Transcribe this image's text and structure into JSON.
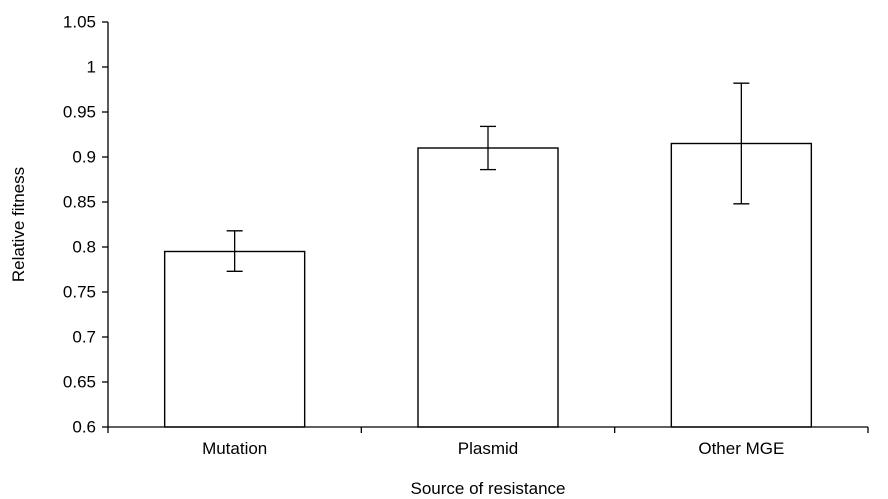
{
  "chart_data": {
    "type": "bar",
    "title": "",
    "xlabel": "Source of resistance",
    "ylabel": "Relative fitness",
    "categories": [
      "Mutation",
      "Plasmid",
      "Other MGE"
    ],
    "values": [
      0.795,
      0.91,
      0.915
    ],
    "error_low": [
      0.773,
      0.886,
      0.848
    ],
    "error_high": [
      0.818,
      0.934,
      0.982
    ],
    "ylim": [
      0.6,
      1.05
    ],
    "yticks": [
      0.6,
      0.65,
      0.7,
      0.75,
      0.8,
      0.85,
      0.9,
      0.95,
      1,
      1.05
    ],
    "ytick_labels": [
      "0.6",
      "0.65",
      "0.7",
      "0.75",
      "0.8",
      "0.85",
      "0.9",
      "0.95",
      "1",
      "1.05"
    ],
    "grid": false,
    "legend": "none",
    "colors": {
      "bar_fill": "#ffffff",
      "bar_stroke": "#000000",
      "axis": "#000000"
    }
  }
}
